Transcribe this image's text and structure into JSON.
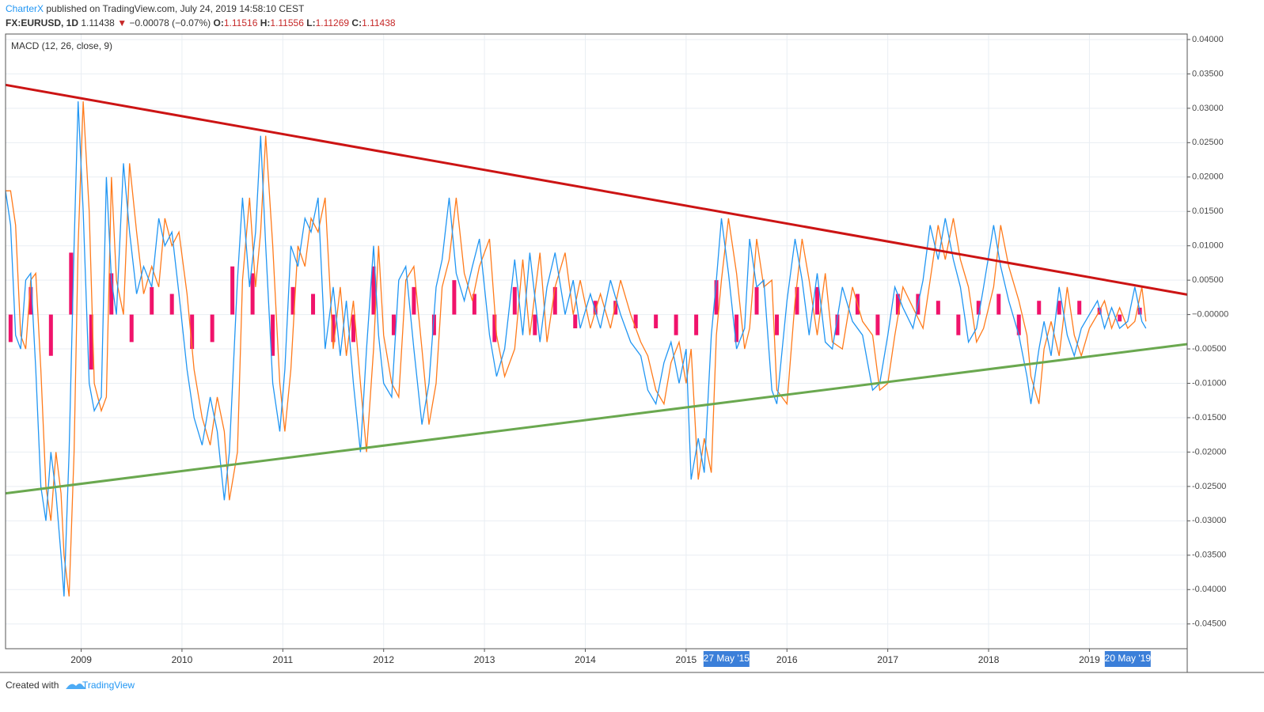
{
  "header": {
    "author": "CharterX",
    "published": "published on TradingView.com, July 24, 2019 14:58:10 CEST",
    "symbol": "FX:EURUSD, 1D",
    "last": "1.11438",
    "change": "−0.00078 (−0.07%)",
    "ohlc": [
      {
        "label": "O:",
        "value": "1.11516"
      },
      {
        "label": "H:",
        "value": "1.11556"
      },
      {
        "label": "L:",
        "value": "1.11269"
      },
      {
        "label": "C:",
        "value": "1.11438"
      }
    ]
  },
  "footer": {
    "text": "Created with",
    "brand": "TradingView"
  },
  "chart_data": {
    "type": "line",
    "title": "MACD (12, 26, close, 9)",
    "xlim": [
      2008.25,
      2019.97
    ],
    "ylim": [
      -0.0486,
      0.0408
    ],
    "xticks": [
      2009,
      2010,
      2011,
      2012,
      2013,
      2014,
      2015,
      2016,
      2017,
      2018,
      2019
    ],
    "yticks": [
      {
        "value": 0.04,
        "label": "0.04000"
      },
      {
        "value": 0.035,
        "label": "0.03500"
      },
      {
        "value": 0.03,
        "label": "0.03000"
      },
      {
        "value": 0.025,
        "label": "0.02500"
      },
      {
        "value": 0.02,
        "label": "0.02000"
      },
      {
        "value": 0.015,
        "label": "0.01500"
      },
      {
        "value": 0.01,
        "label": "0.01000"
      },
      {
        "value": 0.005,
        "label": "0.00500"
      },
      {
        "value": 0,
        "label": "−0.00000"
      },
      {
        "value": -0.005,
        "label": "-0.00500"
      },
      {
        "value": -0.01,
        "label": "-0.01000"
      },
      {
        "value": -0.015,
        "label": "-0.01500"
      },
      {
        "value": -0.02,
        "label": "-0.02000"
      },
      {
        "value": -0.025,
        "label": "-0.02500"
      },
      {
        "value": -0.03,
        "label": "-0.03000"
      },
      {
        "value": -0.035,
        "label": "-0.03500"
      },
      {
        "value": -0.04,
        "label": "-0.04000"
      },
      {
        "value": -0.045,
        "label": "-0.04500"
      }
    ],
    "grid": true,
    "x": [
      2008.25,
      2008.3,
      2008.35,
      2008.4,
      2008.45,
      2008.5,
      2008.55,
      2008.6,
      2008.65,
      2008.7,
      2008.75,
      2008.8,
      2008.83,
      2008.88,
      2008.93,
      2008.97,
      2009.02,
      2009.08,
      2009.13,
      2009.2,
      2009.25,
      2009.3,
      2009.35,
      2009.42,
      2009.48,
      2009.55,
      2009.62,
      2009.7,
      2009.77,
      2009.83,
      2009.9,
      2009.97,
      2010.05,
      2010.12,
      2010.2,
      2010.28,
      2010.35,
      2010.42,
      2010.47,
      2010.55,
      2010.6,
      2010.67,
      2010.73,
      2010.78,
      2010.83,
      2010.9,
      2010.97,
      2011.02,
      2011.08,
      2011.15,
      2011.22,
      2011.28,
      2011.35,
      2011.42,
      2011.5,
      2011.57,
      2011.63,
      2011.7,
      2011.77,
      2011.83,
      2011.9,
      2011.95,
      2012,
      2012.08,
      2012.15,
      2012.22,
      2012.3,
      2012.38,
      2012.45,
      2012.52,
      2012.58,
      2012.65,
      2012.72,
      2012.8,
      2012.88,
      2012.95,
      2013.05,
      2013.12,
      2013.2,
      2013.3,
      2013.38,
      2013.45,
      2013.55,
      2013.62,
      2013.7,
      2013.8,
      2013.88,
      2013.95,
      2014.05,
      2014.15,
      2014.25,
      2014.35,
      2014.45,
      2014.55,
      2014.62,
      2014.7,
      2014.78,
      2014.85,
      2014.93,
      2015,
      2015.05,
      2015.12,
      2015.18,
      2015.25,
      2015.3,
      2015.35,
      2015.42,
      2015.5,
      2015.58,
      2015.63,
      2015.7,
      2015.77,
      2015.85,
      2015.9,
      2016,
      2016.08,
      2016.15,
      2016.22,
      2016.3,
      2016.38,
      2016.45,
      2016.55,
      2016.65,
      2016.75,
      2016.85,
      2016.92,
      2017,
      2017.07,
      2017.15,
      2017.25,
      2017.35,
      2017.42,
      2017.5,
      2017.57,
      2017.65,
      2017.72,
      2017.8,
      2017.88,
      2017.95,
      2018.05,
      2018.12,
      2018.2,
      2018.3,
      2018.38,
      2018.42,
      2018.5,
      2018.55,
      2018.62,
      2018.7,
      2018.78,
      2018.85,
      2018.92,
      2019,
      2019.08,
      2019.15,
      2019.22,
      2019.3,
      2019.38,
      2019.45,
      2019.52,
      2019.56
    ],
    "series": [
      {
        "name": "MACD",
        "color": "#2196f3",
        "values": [
          0.018,
          0.013,
          -0.003,
          -0.005,
          0.005,
          0.006,
          -0.008,
          -0.025,
          -0.03,
          -0.02,
          -0.026,
          -0.035,
          -0.041,
          -0.02,
          0.01,
          0.031,
          0.015,
          -0.01,
          -0.014,
          -0.012,
          0.02,
          0.005,
          0,
          0.022,
          0.012,
          0.003,
          0.007,
          0.004,
          0.014,
          0.01,
          0.012,
          0.003,
          -0.008,
          -0.015,
          -0.019,
          -0.012,
          -0.017,
          -0.027,
          -0.02,
          0.005,
          0.017,
          0.004,
          0.012,
          0.026,
          0.01,
          -0.01,
          -0.017,
          -0.008,
          0.01,
          0.007,
          0.014,
          0.012,
          0.017,
          -0.005,
          0.004,
          -0.006,
          0.002,
          -0.01,
          -0.02,
          -0.005,
          0.01,
          -0.003,
          -0.01,
          -0.012,
          0.005,
          0.007,
          -0.005,
          -0.016,
          -0.01,
          0.004,
          0.008,
          0.017,
          0.006,
          0.002,
          0.007,
          0.011,
          -0.003,
          -0.009,
          -0.005,
          0.008,
          -0.003,
          0.009,
          -0.004,
          0.004,
          0.009,
          0,
          0.005,
          -0.002,
          0.003,
          -0.002,
          0.005,
          0,
          -0.004,
          -0.006,
          -0.011,
          -0.013,
          -0.007,
          -0.004,
          -0.01,
          -0.005,
          -0.024,
          -0.018,
          -0.023,
          -0.003,
          0.005,
          0.014,
          0.006,
          -0.005,
          -0.002,
          0.011,
          0.004,
          0.005,
          -0.011,
          -0.013,
          0.002,
          0.011,
          0.005,
          -0.003,
          0.006,
          -0.004,
          -0.005,
          0.004,
          -0.001,
          -0.003,
          -0.011,
          -0.01,
          -0.003,
          0.004,
          0.001,
          -0.002,
          0.005,
          0.013,
          0.008,
          0.014,
          0.008,
          0.004,
          -0.004,
          -0.002,
          0.004,
          0.013,
          0.007,
          0.002,
          -0.003,
          -0.009,
          -0.013,
          -0.005,
          -0.001,
          -0.006,
          0.004,
          -0.003,
          -0.006,
          -0.002,
          0,
          0.002,
          -0.002,
          0.001,
          -0.002,
          -0.001,
          0.004,
          -0.001,
          -0.002
        ]
      },
      {
        "name": "Signal",
        "color": "#ff7b1c",
        "values": [
          0.018,
          0.018,
          0.013,
          -0.003,
          -0.005,
          0.005,
          0.006,
          -0.008,
          -0.025,
          -0.03,
          -0.02,
          -0.026,
          -0.035,
          -0.041,
          -0.02,
          0.01,
          0.031,
          0.015,
          -0.01,
          -0.014,
          -0.012,
          0.02,
          0.005,
          0,
          0.022,
          0.012,
          0.003,
          0.007,
          0.004,
          0.014,
          0.01,
          0.012,
          0.003,
          -0.008,
          -0.015,
          -0.019,
          -0.012,
          -0.017,
          -0.027,
          -0.02,
          0.005,
          0.017,
          0.004,
          0.012,
          0.026,
          0.01,
          -0.01,
          -0.017,
          -0.008,
          0.01,
          0.007,
          0.014,
          0.012,
          0.017,
          -0.005,
          0.004,
          -0.006,
          0.002,
          -0.01,
          -0.02,
          -0.005,
          0.01,
          -0.003,
          -0.01,
          -0.012,
          0.005,
          0.007,
          -0.005,
          -0.016,
          -0.01,
          0.004,
          0.008,
          0.017,
          0.006,
          0.002,
          0.007,
          0.011,
          -0.003,
          -0.009,
          -0.005,
          0.008,
          -0.003,
          0.009,
          -0.004,
          0.004,
          0.009,
          0,
          0.005,
          -0.002,
          0.003,
          -0.002,
          0.005,
          0,
          -0.004,
          -0.006,
          -0.011,
          -0.013,
          -0.007,
          -0.004,
          -0.01,
          -0.005,
          -0.024,
          -0.018,
          -0.023,
          -0.003,
          0.005,
          0.014,
          0.006,
          -0.005,
          -0.002,
          0.011,
          0.004,
          0.005,
          -0.011,
          -0.013,
          0.002,
          0.011,
          0.005,
          -0.003,
          0.006,
          -0.004,
          -0.005,
          0.004,
          -0.001,
          -0.003,
          -0.011,
          -0.01,
          -0.003,
          0.004,
          0.001,
          -0.002,
          0.005,
          0.013,
          0.008,
          0.014,
          0.008,
          0.004,
          -0.004,
          -0.002,
          0.004,
          0.013,
          0.007,
          0.002,
          -0.003,
          -0.009,
          -0.013,
          -0.005,
          -0.001,
          -0.006,
          0.004,
          -0.003,
          -0.006,
          -0.002,
          0,
          0.002,
          -0.002,
          0.001,
          -0.002,
          -0.001,
          0.004,
          -0.001
        ]
      }
    ],
    "histogram": {
      "color": "#f0136b",
      "x": [
        2008.3,
        2008.5,
        2008.7,
        2008.9,
        2009.1,
        2009.3,
        2009.5,
        2009.7,
        2009.9,
        2010.1,
        2010.3,
        2010.5,
        2010.7,
        2010.9,
        2011.1,
        2011.3,
        2011.5,
        2011.7,
        2011.9,
        2012.1,
        2012.3,
        2012.5,
        2012.7,
        2012.9,
        2013.1,
        2013.3,
        2013.5,
        2013.7,
        2013.9,
        2014.1,
        2014.3,
        2014.5,
        2014.7,
        2014.9,
        2015.1,
        2015.3,
        2015.5,
        2015.7,
        2015.9,
        2016.1,
        2016.3,
        2016.5,
        2016.7,
        2016.9,
        2017.1,
        2017.3,
        2017.5,
        2017.7,
        2017.9,
        2018.1,
        2018.3,
        2018.5,
        2018.7,
        2018.9,
        2019.1,
        2019.3,
        2019.5
      ],
      "values": [
        -0.004,
        0.004,
        -0.006,
        0.009,
        -0.008,
        0.006,
        -0.004,
        0.004,
        0.003,
        -0.005,
        -0.004,
        0.007,
        0.006,
        -0.006,
        0.004,
        0.003,
        -0.004,
        -0.004,
        0.007,
        -0.003,
        0.004,
        -0.003,
        0.005,
        0.003,
        -0.004,
        0.004,
        -0.003,
        0.004,
        -0.002,
        0.002,
        0.002,
        -0.002,
        -0.002,
        -0.003,
        -0.003,
        0.005,
        -0.004,
        0.004,
        -0.003,
        0.004,
        0.004,
        -0.003,
        0.003,
        -0.003,
        0.003,
        0.003,
        0.002,
        -0.003,
        0.002,
        0.003,
        -0.003,
        0.002,
        0.002,
        0.002,
        0.001,
        -0.001,
        0.001
      ]
    },
    "trendlines": [
      {
        "color": "#cc1414",
        "x": [
          2008.25,
          2019.97
        ],
        "values": [
          0.0334,
          0.0029
        ]
      },
      {
        "color": "#6aa84f",
        "x": [
          2008.25,
          2019.97
        ],
        "values": [
          -0.026,
          -0.0043
        ]
      }
    ],
    "x_markers": [
      {
        "x": 2015.4,
        "label": "27 May '15"
      },
      {
        "x": 2019.38,
        "label": "20 May '19"
      }
    ]
  }
}
